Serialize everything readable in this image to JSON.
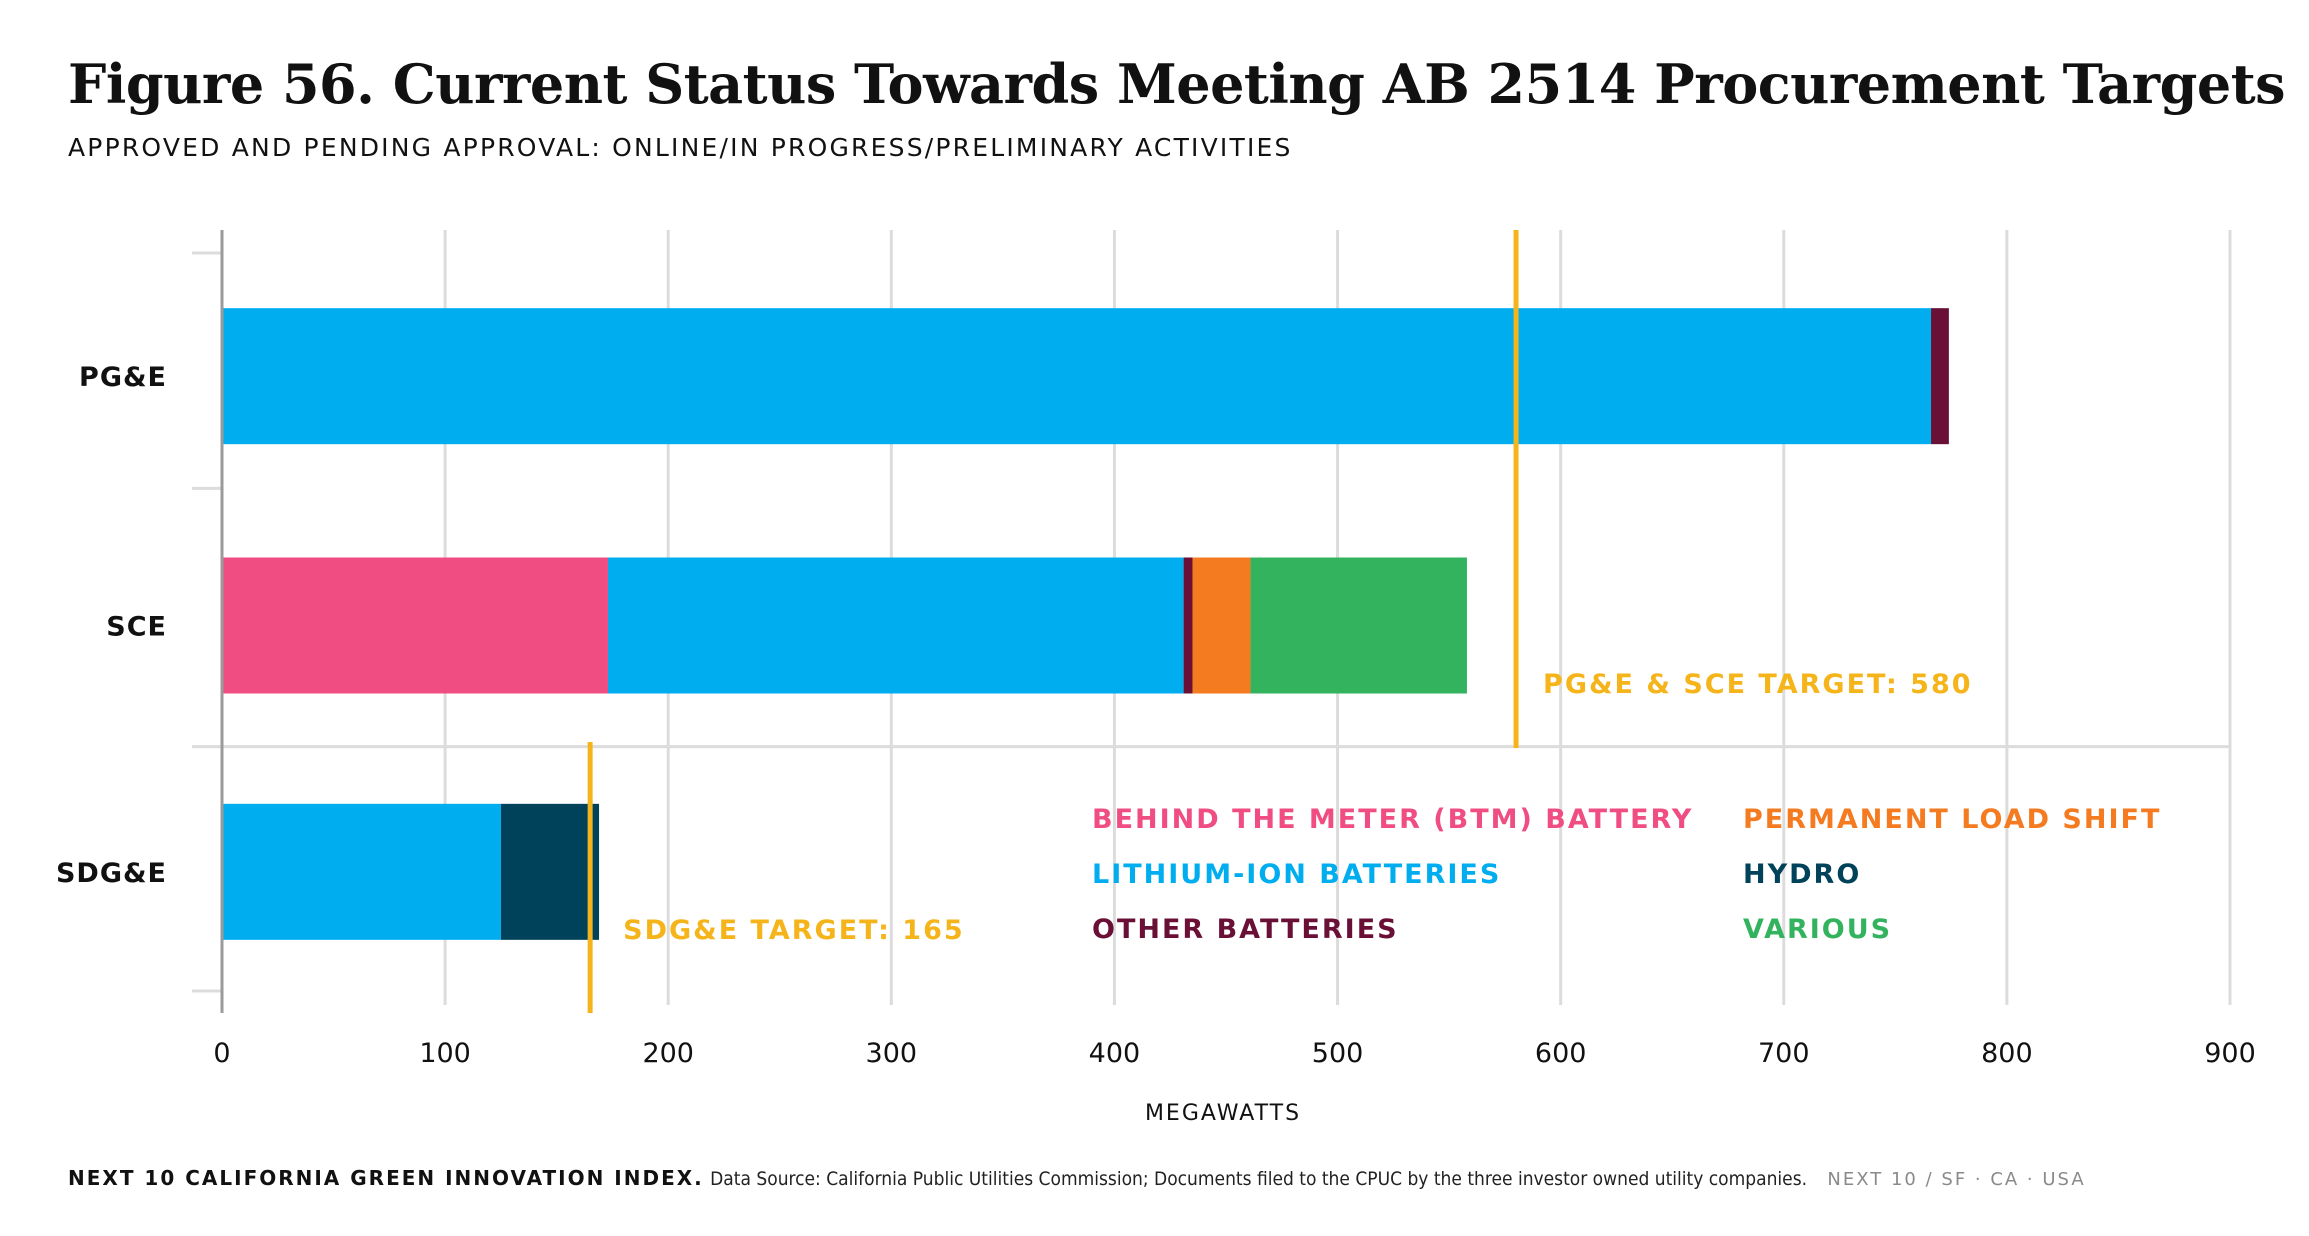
{
  "title": "Figure 56. Current Status Towards Meeting AB 2514 Procurement Targets",
  "subtitle": "APPROVED AND PENDING APPROVAL: ONLINE/IN PROGRESS/PRELIMINARY ACTIVITIES",
  "footer": {
    "brand": "NEXT 10 CALIFORNIA GREEN INNOVATION INDEX.",
    "source": "Data Source: California Public Utilities Commission; Documents filed to the CPUC by the three investor owned utility companies.",
    "org": "NEXT 10  /  SF · CA · USA"
  },
  "chart_data": {
    "type": "bar",
    "orientation": "horizontal",
    "stacked": true,
    "title": "Figure 56. Current Status Towards Meeting AB 2514 Procurement Targets",
    "subtitle": "APPROVED AND PENDING APPROVAL: ONLINE/IN PROGRESS/PRELIMINARY ACTIVITIES",
    "xlabel": "MEGAWATTS",
    "ylabel": "",
    "xlim": [
      0,
      900
    ],
    "xticks": [
      0,
      100,
      200,
      300,
      400,
      500,
      600,
      700,
      800,
      900
    ],
    "grid": true,
    "categories": [
      "PG&E",
      "SCE",
      "SDG&E"
    ],
    "series": [
      {
        "name": "BEHIND THE METER (BTM) BATTERY",
        "color": "#F04E83",
        "values": [
          0,
          173,
          0
        ]
      },
      {
        "name": "LITHIUM-ION BATTERIES",
        "color": "#00AEEF",
        "values": [
          766,
          258,
          125
        ]
      },
      {
        "name": "OTHER BATTERIES",
        "color": "#6A1037",
        "values": [
          8,
          4,
          0
        ]
      },
      {
        "name": "PERMANENT LOAD SHIFT",
        "color": "#F47B20",
        "values": [
          0,
          26,
          0
        ]
      },
      {
        "name": "HYDRO",
        "color": "#00425A",
        "values": [
          0,
          0,
          44
        ]
      },
      {
        "name": "VARIOUS",
        "color": "#33B35E",
        "values": [
          0,
          97,
          0
        ]
      }
    ],
    "legend_placement": "bottom-right",
    "targets": [
      {
        "label": "PG&E & SCE TARGET: 580",
        "value": 580,
        "color": "#F5B41A",
        "applies_to": [
          "PG&E",
          "SCE"
        ]
      },
      {
        "label": "SDG&E TARGET: 165",
        "value": 165,
        "color": "#F5B41A",
        "applies_to": [
          "SDG&E"
        ]
      }
    ]
  }
}
